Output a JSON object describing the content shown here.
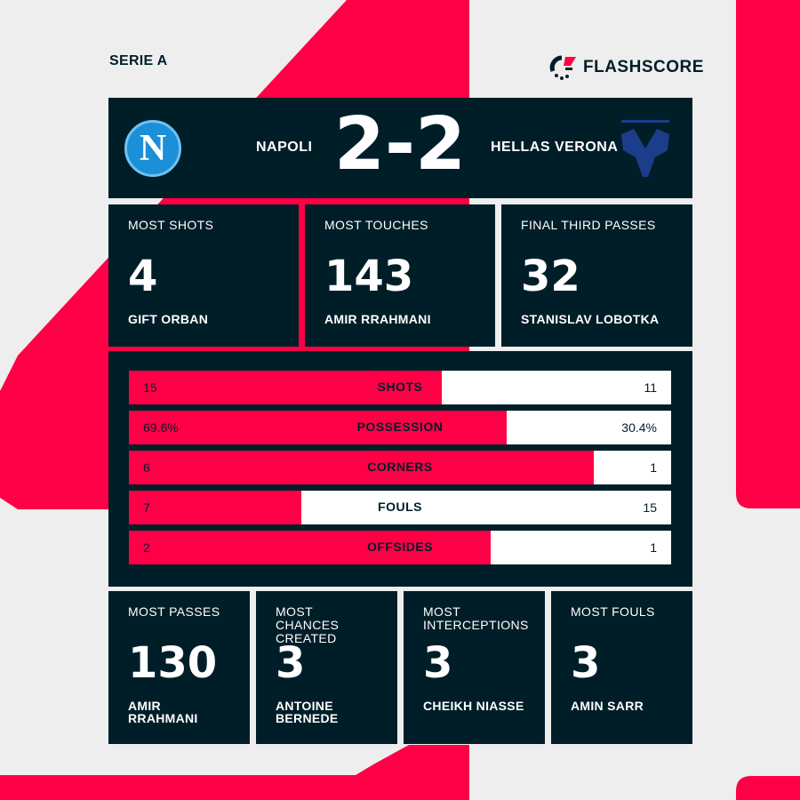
{
  "league": "SERIE A",
  "brand": "FLASHSCORE",
  "colors": {
    "accent": "#ff0046",
    "panel": "#001e28",
    "background": "#eeeeee"
  },
  "match": {
    "home": "NAPOLI",
    "away": "HELLAS VERONA",
    "score": "2-2",
    "home_crest": "napoli-crest-icon",
    "away_crest": "hellas-verona-crest-icon"
  },
  "top_cards": [
    {
      "label": "MOST SHOTS",
      "value": "4",
      "player": "GIFT ORBAN"
    },
    {
      "label": "MOST TOUCHES",
      "value": "143",
      "player": "AMIR RRAHMANI"
    },
    {
      "label": "FINAL THIRD PASSES",
      "value": "32",
      "player": "STANISLAV LOBOTKA"
    }
  ],
  "stats": [
    {
      "name": "SHOTS",
      "home": "15",
      "away": "11",
      "home_share": 0.577
    },
    {
      "name": "POSSESSION",
      "home": "69.6%",
      "away": "30.4%",
      "home_share": 0.696
    },
    {
      "name": "CORNERS",
      "home": "6",
      "away": "1",
      "home_share": 0.857
    },
    {
      "name": "FOULS",
      "home": "7",
      "away": "15",
      "home_share": 0.318
    },
    {
      "name": "OFFSIDES",
      "home": "2",
      "away": "1",
      "home_share": 0.667
    }
  ],
  "bottom_cards": [
    {
      "label": "MOST PASSES",
      "value": "130",
      "player": "AMIR RRAHMANI"
    },
    {
      "label": "MOST CHANCES CREATED",
      "value": "3",
      "player": "ANTOINE BERNEDE"
    },
    {
      "label": "MOST INTERCEPTIONS",
      "value": "3",
      "player": "CHEIKH NIASSE"
    },
    {
      "label": "MOST FOULS",
      "value": "3",
      "player": "AMIN SARR"
    }
  ]
}
